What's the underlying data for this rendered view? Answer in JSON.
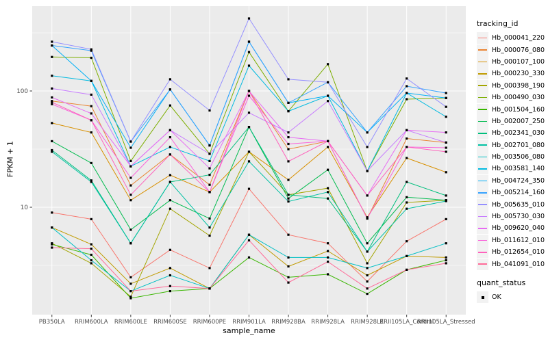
{
  "figure": {
    "bg_color": "#FFFFFF",
    "panel_color": "#EBEBEB",
    "grid_color": "#FFFFFF",
    "tick_color": "#333333",
    "tick_label_color": "#4D4D4D",
    "axis_title_color": "#000000",
    "legend_key_bg": "#F2F2F2",
    "point_color": "#000000"
  },
  "legend": {
    "color_legend_title": "tracking_id",
    "shape_legend_title": "quant_status",
    "shape_legend_items": [
      {
        "label": "OK",
        "shape": "filled-square"
      }
    ]
  },
  "chart_data": {
    "type": "line",
    "title": "",
    "xlabel": "sample_name",
    "ylabel": "FPKM + 1",
    "y_scale": "log10",
    "grid": true,
    "legend_position": "right",
    "y_ticks": [
      100,
      10
    ],
    "y_tick_labels": [
      "100",
      "10"
    ],
    "y_minor_ticks": [
      316.23,
      31.623,
      3.1623
    ],
    "ylim": [
      1.16,
      530
    ],
    "point_shape": "filled-square",
    "categories": [
      "PB350LA",
      "RRIM600LA",
      "RRIM600LE",
      "RRIM600SE",
      "RRIM600PE",
      "RRIM901LA",
      "RRIM928BA",
      "RRIM928LA",
      "RRIM928LE",
      "RRII105LA_Control",
      "RRII105LA_Stressed"
    ],
    "series": [
      {
        "name": "Hb_000041_220",
        "color": "#F8766D",
        "values": [
          9.0,
          7.9,
          2.5,
          4.3,
          3.0,
          14.4,
          5.8,
          4.9,
          2.3,
          5.1,
          7.9
        ]
      },
      {
        "name": "Hb_000076_080",
        "color": "#EA8331",
        "values": [
          82,
          74,
          15.4,
          28.4,
          15.6,
          100,
          31.6,
          37,
          8.0,
          39,
          36
        ]
      },
      {
        "name": "Hb_000107_100",
        "color": "#D89000",
        "values": [
          53,
          44,
          11.5,
          18.9,
          13.5,
          30,
          17.2,
          33,
          8.2,
          26.5,
          20
        ]
      },
      {
        "name": "Hb_000230_330",
        "color": "#C09B00",
        "values": [
          6.7,
          4.8,
          2.2,
          3.0,
          2.0,
          5.8,
          3.1,
          4.2,
          2.6,
          3.8,
          3.7
        ]
      },
      {
        "name": "Hb_000398_190",
        "color": "#A3A500",
        "values": [
          4.9,
          3.3,
          1.7,
          9.7,
          5.7,
          30,
          12.8,
          14.6,
          3.3,
          11.0,
          11.5
        ]
      },
      {
        "name": "Hb_000490_030",
        "color": "#7CAE00",
        "values": [
          196,
          193,
          25,
          75,
          28.8,
          216,
          67,
          170,
          20.5,
          85,
          87
        ]
      },
      {
        "name": "Hb_001504_160",
        "color": "#39B600",
        "values": [
          4.8,
          3.9,
          1.65,
          1.9,
          2.0,
          3.7,
          2.5,
          2.65,
          1.8,
          2.9,
          3.5
        ]
      },
      {
        "name": "Hb_002007_250",
        "color": "#00BB4E",
        "values": [
          37,
          24,
          6.4,
          11.5,
          8.0,
          49,
          11.9,
          21,
          4.9,
          12.2,
          11.5
        ]
      },
      {
        "name": "Hb_002341_030",
        "color": "#00BF7D",
        "values": [
          31,
          17,
          4.9,
          16.5,
          19,
          49,
          12.8,
          11.9,
          4.15,
          16.5,
          12.6
        ]
      },
      {
        "name": "Hb_002701_080",
        "color": "#00C1A3",
        "values": [
          30,
          16.5,
          4.9,
          16.5,
          6.7,
          24.8,
          11.2,
          13.5,
          4.15,
          9.7,
          11.3
        ]
      },
      {
        "name": "Hb_003506_080",
        "color": "#00BFC4",
        "values": [
          6.7,
          3.5,
          1.9,
          2.6,
          2.0,
          5.8,
          3.7,
          3.7,
          3.0,
          3.8,
          4.9
        ]
      },
      {
        "name": "Hb_003581_140",
        "color": "#00BAE0",
        "values": [
          135,
          122,
          22.5,
          33,
          25,
          165,
          67,
          91,
          20.5,
          96,
          60
        ]
      },
      {
        "name": "Hb_004724_350",
        "color": "#00B0F6",
        "values": [
          246,
          122,
          32.5,
          103,
          34,
          265,
          79,
          91,
          44,
          96,
          87
        ]
      },
      {
        "name": "Hb_005214_160",
        "color": "#35A2FF",
        "values": [
          246,
          222,
          36.7,
          103,
          34,
          265,
          79,
          119,
          44,
          110,
          96
        ]
      },
      {
        "name": "Hb_005635_010",
        "color": "#9590FF",
        "values": [
          265,
          228,
          36.7,
          126,
          68,
          420,
          126,
          119,
          33,
          128,
          73
        ]
      },
      {
        "name": "Hb_005730_030",
        "color": "#C77CFF",
        "values": [
          105,
          93,
          22.5,
          46,
          28.8,
          65,
          44,
          82,
          20.5,
          46,
          36
        ]
      },
      {
        "name": "Hb_009620_040",
        "color": "#E76BF3",
        "values": [
          88,
          64,
          22.5,
          46,
          21.6,
          100,
          40,
          37,
          12.6,
          46,
          44
        ]
      },
      {
        "name": "Hb_011612_010",
        "color": "#FA62DB",
        "values": [
          77,
          56,
          17.9,
          40,
          13.5,
          91,
          35,
          37,
          8.0,
          33,
          32.5
        ]
      },
      {
        "name": "Hb_012654_010",
        "color": "#FF62BC",
        "values": [
          80,
          56,
          12.8,
          28.4,
          13.5,
          100,
          24.8,
          37,
          12.6,
          33,
          30
        ]
      },
      {
        "name": "Hb_041091_010",
        "color": "#FF6A98",
        "values": [
          4.5,
          4.4,
          1.9,
          2.1,
          2.0,
          5.2,
          2.25,
          3.4,
          2.0,
          2.9,
          3.3
        ]
      }
    ]
  }
}
